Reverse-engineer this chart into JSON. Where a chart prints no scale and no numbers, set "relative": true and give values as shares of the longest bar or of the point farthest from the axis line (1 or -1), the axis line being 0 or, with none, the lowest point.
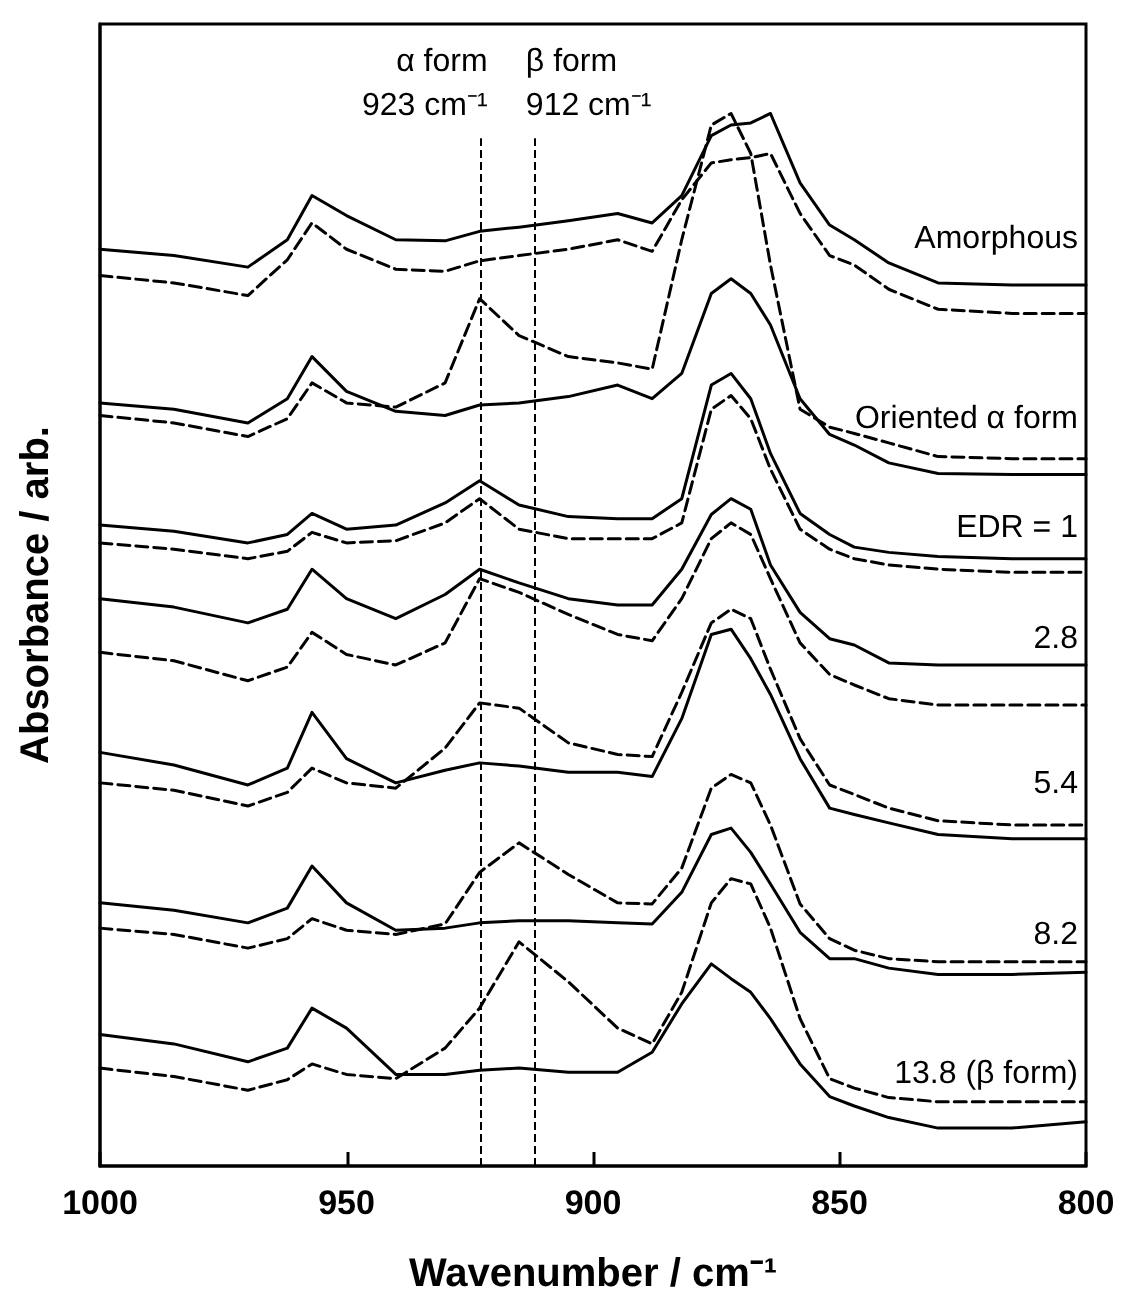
{
  "chart_data": {
    "type": "line",
    "relative": true,
    "xlabel": "Wavenumber / cm⁻¹",
    "ylabel": "Absorbance / arb.",
    "x": [
      1000,
      985,
      970,
      962,
      957,
      950,
      940,
      930,
      923,
      915,
      905,
      895,
      888,
      882,
      876,
      872,
      868,
      864,
      858,
      852,
      847,
      840,
      830,
      815,
      800
    ],
    "xlim": [
      1000,
      800
    ],
    "xticks": [
      1000,
      950,
      900,
      850,
      800
    ],
    "grid": false,
    "legend": false,
    "marker": "none",
    "ref_lines": [
      {
        "axis": "x",
        "value": 923,
        "label": "α form 923 cm⁻¹",
        "line_style": "dashed"
      },
      {
        "axis": "x",
        "value": 912,
        "label": "β form 912 cm⁻¹",
        "line_style": "dashed"
      }
    ],
    "series": [
      {
        "name": "Amorphous",
        "color": "#000000",
        "line_style": "solid",
        "values": [
          0.871,
          0.865,
          0.854,
          0.88,
          0.922,
          0.903,
          0.88,
          0.879,
          0.888,
          0.892,
          0.898,
          0.905,
          0.896,
          0.922,
          0.979,
          0.989,
          0.991,
          1.0,
          0.934,
          0.894,
          0.88,
          0.858,
          0.839,
          0.837,
          0.837
        ]
      },
      {
        "color": "#000000",
        "line_style": "dashed",
        "values": [
          0.846,
          0.839,
          0.827,
          0.861,
          0.896,
          0.871,
          0.852,
          0.85,
          0.86,
          0.865,
          0.871,
          0.88,
          0.869,
          0.918,
          0.953,
          0.956,
          0.958,
          0.962,
          0.905,
          0.865,
          0.856,
          0.833,
          0.814,
          0.81,
          0.81
        ]
      },
      {
        "name": "Oriented α form",
        "color": "#000000",
        "line_style": "solid",
        "values": [
          0.725,
          0.719,
          0.706,
          0.729,
          0.769,
          0.736,
          0.717,
          0.713,
          0.723,
          0.725,
          0.731,
          0.742,
          0.729,
          0.753,
          0.829,
          0.843,
          0.829,
          0.799,
          0.729,
          0.695,
          0.685,
          0.668,
          0.658,
          0.657,
          0.657
        ]
      },
      {
        "color": "#000000",
        "line_style": "dashed",
        "values": [
          0.713,
          0.706,
          0.693,
          0.71,
          0.744,
          0.725,
          0.721,
          0.744,
          0.824,
          0.789,
          0.769,
          0.763,
          0.757,
          0.88,
          0.989,
          1.0,
          0.962,
          0.856,
          0.719,
          0.702,
          0.696,
          0.687,
          0.674,
          0.672,
          0.672
        ]
      },
      {
        "name": "EDR = 1",
        "color": "#000000",
        "line_style": "solid",
        "values": [
          0.609,
          0.603,
          0.592,
          0.6,
          0.62,
          0.605,
          0.609,
          0.63,
          0.651,
          0.628,
          0.617,
          0.615,
          0.615,
          0.634,
          0.742,
          0.753,
          0.729,
          0.677,
          0.62,
          0.6,
          0.588,
          0.583,
          0.579,
          0.577,
          0.577
        ]
      },
      {
        "color": "#000000",
        "line_style": "dashed",
        "values": [
          0.592,
          0.586,
          0.577,
          0.584,
          0.602,
          0.592,
          0.594,
          0.611,
          0.634,
          0.605,
          0.596,
          0.596,
          0.596,
          0.611,
          0.719,
          0.732,
          0.71,
          0.662,
          0.605,
          0.586,
          0.577,
          0.571,
          0.567,
          0.564,
          0.564
        ]
      },
      {
        "name": "2.8",
        "color": "#000000",
        "line_style": "solid",
        "values": [
          0.539,
          0.531,
          0.516,
          0.529,
          0.567,
          0.539,
          0.52,
          0.543,
          0.567,
          0.554,
          0.539,
          0.533,
          0.533,
          0.567,
          0.619,
          0.634,
          0.624,
          0.571,
          0.526,
          0.501,
          0.495,
          0.478,
          0.476,
          0.476,
          0.476
        ]
      },
      {
        "color": "#000000",
        "line_style": "dashed",
        "values": [
          0.488,
          0.48,
          0.461,
          0.474,
          0.507,
          0.486,
          0.476,
          0.497,
          0.558,
          0.545,
          0.524,
          0.505,
          0.499,
          0.539,
          0.596,
          0.611,
          0.6,
          0.558,
          0.497,
          0.467,
          0.457,
          0.444,
          0.438,
          0.438,
          0.438
        ]
      },
      {
        "name": "5.4",
        "color": "#000000",
        "line_style": "solid",
        "values": [
          0.393,
          0.381,
          0.362,
          0.378,
          0.431,
          0.387,
          0.364,
          0.376,
          0.383,
          0.38,
          0.374,
          0.374,
          0.37,
          0.425,
          0.505,
          0.51,
          0.482,
          0.448,
          0.387,
          0.34,
          0.334,
          0.326,
          0.315,
          0.311,
          0.311
        ]
      },
      {
        "color": "#000000",
        "line_style": "dashed",
        "values": [
          0.364,
          0.357,
          0.342,
          0.355,
          0.378,
          0.364,
          0.359,
          0.397,
          0.44,
          0.435,
          0.402,
          0.391,
          0.389,
          0.45,
          0.516,
          0.529,
          0.52,
          0.472,
          0.406,
          0.362,
          0.353,
          0.34,
          0.328,
          0.324,
          0.324
        ]
      },
      {
        "name": "8.2",
        "color": "#000000",
        "line_style": "solid",
        "values": [
          0.25,
          0.243,
          0.231,
          0.245,
          0.285,
          0.25,
          0.224,
          0.226,
          0.231,
          0.233,
          0.233,
          0.231,
          0.23,
          0.26,
          0.315,
          0.321,
          0.298,
          0.268,
          0.222,
          0.197,
          0.197,
          0.188,
          0.182,
          0.182,
          0.184
        ]
      },
      {
        "color": "#000000",
        "line_style": "dashed",
        "values": [
          0.226,
          0.22,
          0.207,
          0.216,
          0.235,
          0.224,
          0.22,
          0.23,
          0.279,
          0.307,
          0.277,
          0.25,
          0.249,
          0.283,
          0.359,
          0.372,
          0.364,
          0.324,
          0.249,
          0.216,
          0.205,
          0.197,
          0.194,
          0.194,
          0.194
        ]
      },
      {
        "name": "13.8 (β form)",
        "color": "#000000",
        "line_style": "solid",
        "values": [
          0.125,
          0.116,
          0.099,
          0.112,
          0.15,
          0.131,
          0.087,
          0.087,
          0.091,
          0.093,
          0.089,
          0.089,
          0.108,
          0.154,
          0.192,
          0.178,
          0.165,
          0.14,
          0.097,
          0.066,
          0.057,
          0.046,
          0.036,
          0.036,
          0.042
        ]
      },
      {
        "color": "#000000",
        "line_style": "dashed",
        "values": [
          0.093,
          0.085,
          0.072,
          0.082,
          0.097,
          0.087,
          0.083,
          0.112,
          0.15,
          0.213,
          0.175,
          0.131,
          0.116,
          0.165,
          0.25,
          0.273,
          0.268,
          0.226,
          0.14,
          0.083,
          0.074,
          0.065,
          0.061,
          0.061,
          0.061
        ]
      }
    ]
  }
}
